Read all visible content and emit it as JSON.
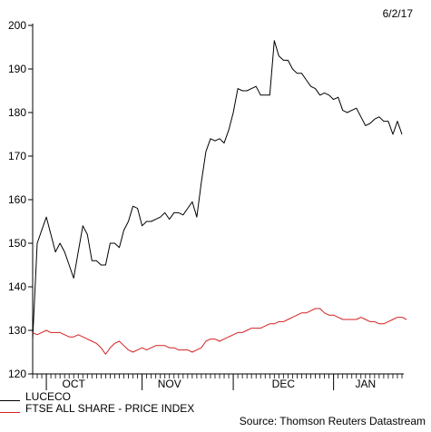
{
  "date_label": "6/2/17",
  "source": "Source: Thomson Reuters Datastream",
  "legend": [
    {
      "label": "LUCECO",
      "color": "#000000"
    },
    {
      "label": "FTSE ALL SHARE - PRICE INDEX",
      "color": "#d42020"
    }
  ],
  "chart_data": {
    "type": "line",
    "title": "",
    "xlabel": "",
    "ylabel": "",
    "ylim": [
      120,
      200
    ],
    "yticks": [
      120,
      130,
      140,
      150,
      160,
      170,
      180,
      190,
      200
    ],
    "month_labels": [
      "OCT",
      "NOV",
      "DEC",
      "JAN"
    ],
    "grid": false,
    "legend_position": "bottom-left",
    "series": [
      {
        "name": "LUCECO",
        "color": "#000000",
        "values": [
          128,
          150,
          153,
          156,
          152,
          148,
          150,
          148,
          145,
          142,
          148,
          154,
          152,
          146,
          146,
          145,
          145,
          150,
          150,
          149,
          153,
          155,
          158.5,
          158,
          154,
          155,
          155,
          155.5,
          156,
          157,
          155.5,
          157,
          157,
          156.5,
          158,
          159.5,
          156,
          164,
          171,
          174,
          173.5,
          174,
          173,
          176,
          180,
          185.5,
          185,
          185,
          185.5,
          186,
          184,
          184,
          184,
          196.5,
          193,
          192,
          192,
          190,
          189,
          189,
          187.5,
          186,
          185.5,
          184,
          184.5,
          184,
          183,
          183.5,
          180.5,
          180,
          180.5,
          181,
          179,
          177,
          177.5,
          178.5,
          179,
          178,
          178,
          175,
          178,
          175
        ]
      },
      {
        "name": "FTSE ALL SHARE - PRICE INDEX",
        "color": "#d42020",
        "values": [
          129.5,
          129,
          129.5,
          130,
          129.5,
          129.5,
          129.5,
          129,
          128.5,
          128.5,
          129,
          128.5,
          128,
          127.5,
          127,
          126,
          124.5,
          126,
          127,
          127.5,
          126.5,
          125.5,
          125,
          125.5,
          126,
          125.5,
          126,
          126.5,
          126.5,
          126.5,
          126,
          126,
          125.5,
          125.5,
          125.5,
          125,
          125.5,
          126,
          127.5,
          128,
          128,
          127.5,
          128,
          128.5,
          129,
          129.5,
          129.5,
          130,
          130.5,
          130.5,
          130.5,
          131,
          131.5,
          131.5,
          132,
          132,
          132.5,
          133,
          133.5,
          134,
          134,
          134.5,
          135,
          135,
          134,
          133.5,
          133.5,
          133,
          132.5,
          132.5,
          132.5,
          132.5,
          133,
          132.5,
          132,
          132,
          131.5,
          131.5,
          132,
          132.5,
          133,
          133,
          132.5
        ]
      }
    ]
  }
}
